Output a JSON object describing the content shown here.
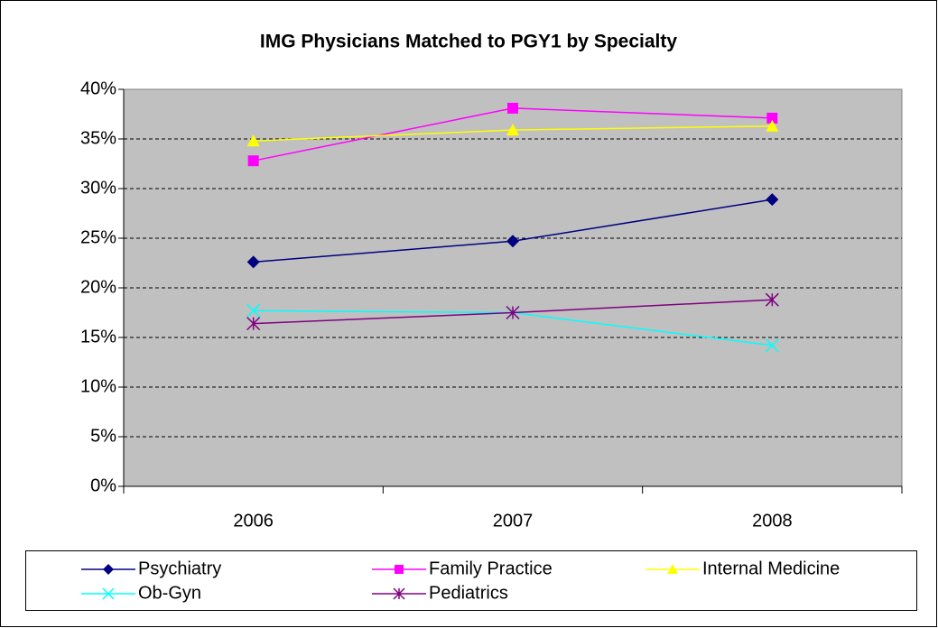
{
  "chart_data": {
    "type": "line",
    "title": "IMG Physicians Matched to PGY1 by Specialty",
    "categories": [
      "2006",
      "2007",
      "2008"
    ],
    "series": [
      {
        "name": "Psychiatry",
        "color": "#000080",
        "marker": "diamond",
        "values": [
          22.6,
          24.7,
          28.9
        ]
      },
      {
        "name": "Family Practice",
        "color": "#ff00ff",
        "marker": "square",
        "values": [
          32.8,
          38.1,
          37.1
        ]
      },
      {
        "name": "Internal Medicine",
        "color": "#ffff00",
        "marker": "triangle",
        "values": [
          34.8,
          35.9,
          36.3
        ]
      },
      {
        "name": "Ob-Gyn",
        "color": "#00ffff",
        "marker": "x",
        "values": [
          17.7,
          17.5,
          14.2
        ]
      },
      {
        "name": "Pediatrics",
        "color": "#800080",
        "marker": "asterisk",
        "values": [
          16.4,
          17.5,
          18.8
        ]
      }
    ],
    "ylim": [
      0,
      40
    ],
    "yticks": [
      {
        "value": 0,
        "label": "0%"
      },
      {
        "value": 5,
        "label": "5%"
      },
      {
        "value": 10,
        "label": "10%"
      },
      {
        "value": 15,
        "label": "15%"
      },
      {
        "value": 20,
        "label": "20%"
      },
      {
        "value": 25,
        "label": "25%"
      },
      {
        "value": 30,
        "label": "30%"
      },
      {
        "value": 35,
        "label": "35%"
      },
      {
        "value": 40,
        "label": "40%"
      }
    ],
    "grid": true,
    "plot_background": "#c0c0c0",
    "legend": "bottom"
  }
}
